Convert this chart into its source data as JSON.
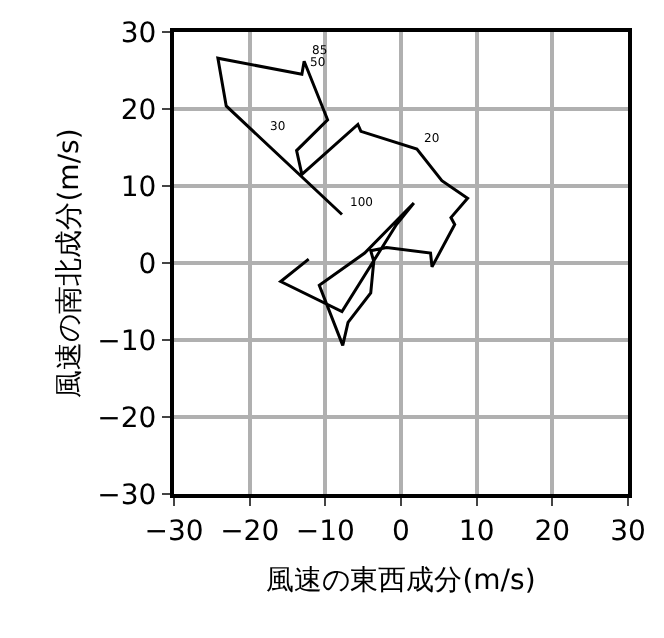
{
  "chart_data": {
    "type": "line",
    "xlabel": "風速の東西成分(m/s)",
    "ylabel": "風速の南北成分(m/s)",
    "x": [
      -12.2,
      -15.9,
      -7.8,
      -0.6,
      1.7,
      -4.8,
      -10.8,
      -7.7,
      -7.0,
      -4.0,
      -3.6,
      -4.0,
      -1.9,
      3.9,
      4.1,
      7.1,
      6.6,
      8.8,
      5.4,
      2.1,
      -5.3,
      -5.7,
      -13.1,
      -13.8,
      -9.7,
      -12.8,
      -13.1,
      -24.2,
      -23.1,
      -7.8
    ],
    "series": [
      {
        "color": "#000000",
        "values": [
          0.5,
          -2.4,
          -6.3,
          5.0,
          7.8,
          1.3,
          -2.9,
          -10.7,
          -7.7,
          -3.9,
          0.2,
          1.6,
          2.0,
          1.3,
          -0.5,
          5.0,
          5.9,
          8.4,
          10.7,
          14.8,
          17.1,
          18.0,
          11.5,
          14.6,
          18.6,
          26.2,
          24.5,
          26.6,
          20.4,
          6.3
        ]
      }
    ],
    "annotations": [
      {
        "text": "85",
        "x": -12.8,
        "y": 26.2
      },
      {
        "text": "50",
        "x": -13.1,
        "y": 24.5
      },
      {
        "text": "30",
        "x": -18.5,
        "y": 16.3
      },
      {
        "text": "20",
        "x": 2.1,
        "y": 14.8
      },
      {
        "text": "100",
        "x": -7.8,
        "y": 6.3
      }
    ],
    "xlim": [
      -30,
      30
    ],
    "ylim": [
      -30,
      30
    ],
    "xticks": [
      {
        "value": -30,
        "label": "−30"
      },
      {
        "value": -20,
        "label": "−20"
      },
      {
        "value": -10,
        "label": "−10"
      },
      0,
      10,
      20,
      30
    ],
    "yticks": [
      {
        "value": -30,
        "label": "−30"
      },
      {
        "value": -20,
        "label": "−20"
      },
      {
        "value": -10,
        "label": "−10"
      },
      0,
      10,
      20,
      30
    ],
    "grid": true,
    "marker": "none",
    "line_style": "solid"
  }
}
